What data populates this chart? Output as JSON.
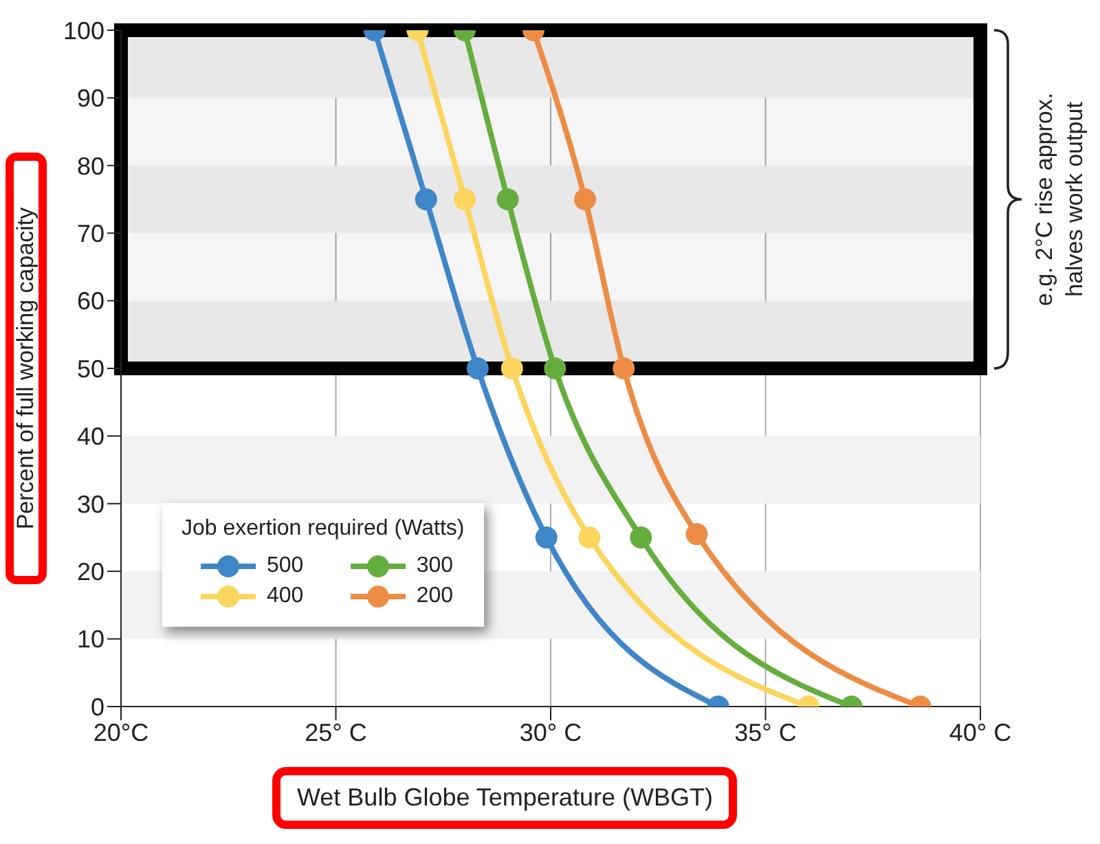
{
  "chart_data": {
    "type": "line",
    "xlabel": "Wet Bulb Globe Temperature (WBGT)",
    "ylabel": "Percent of full working capacity",
    "legend_title": "Job exertion required (Watts)",
    "series": [
      {
        "name": "500",
        "color": "#3f86c8",
        "x": [
          25.9,
          27.1,
          28.3,
          29.9,
          33.9
        ],
        "values": [
          100,
          75,
          50,
          25,
          0
        ]
      },
      {
        "name": "400",
        "color": "#fbd55e",
        "x": [
          26.9,
          28.0,
          29.1,
          30.9,
          36.0
        ],
        "values": [
          100,
          75,
          50,
          25,
          0
        ]
      },
      {
        "name": "300",
        "color": "#66ad3f",
        "x": [
          28.0,
          29.0,
          30.1,
          32.1,
          37.0
        ],
        "values": [
          100,
          75,
          50,
          25,
          0
        ]
      },
      {
        "name": "200",
        "color": "#ec8c45",
        "x": [
          29.6,
          30.8,
          31.7,
          33.4,
          38.6
        ],
        "values": [
          100,
          75,
          50,
          25.5,
          0
        ]
      }
    ],
    "xlim": [
      20,
      40
    ],
    "xticks": [
      {
        "value": 20,
        "label": "20°C"
      },
      {
        "value": 25,
        "label": "25° C"
      },
      {
        "value": 30,
        "label": "30° C"
      },
      {
        "value": 35,
        "label": "35° C"
      },
      {
        "value": 40,
        "label": "40° C"
      }
    ],
    "ylim": [
      0,
      100
    ],
    "yticks": [
      0,
      10,
      20,
      30,
      40,
      50,
      60,
      70,
      80,
      90,
      100
    ],
    "bands": [
      {
        "axis": "y",
        "from": 10,
        "to": 20,
        "color": "#f2f2f2"
      },
      {
        "axis": "y",
        "from": 30,
        "to": 40,
        "color": "#f2f2f2"
      },
      {
        "axis": "y",
        "from": 50,
        "to": 60,
        "color": "#f2f2f2"
      },
      {
        "axis": "y",
        "from": 70,
        "to": 80,
        "color": "#f2f2f2"
      },
      {
        "axis": "y",
        "from": 90,
        "to": 100,
        "color": "#f2f2f2"
      },
      {
        "axis": "y",
        "from": 50,
        "to": 100,
        "color": "#000000",
        "label": "e.g. 2°C rise approx. halves work output"
      }
    ],
    "grid": "x",
    "legend": "bottom left",
    "marker": "circle",
    "line_style": "solid"
  }
}
